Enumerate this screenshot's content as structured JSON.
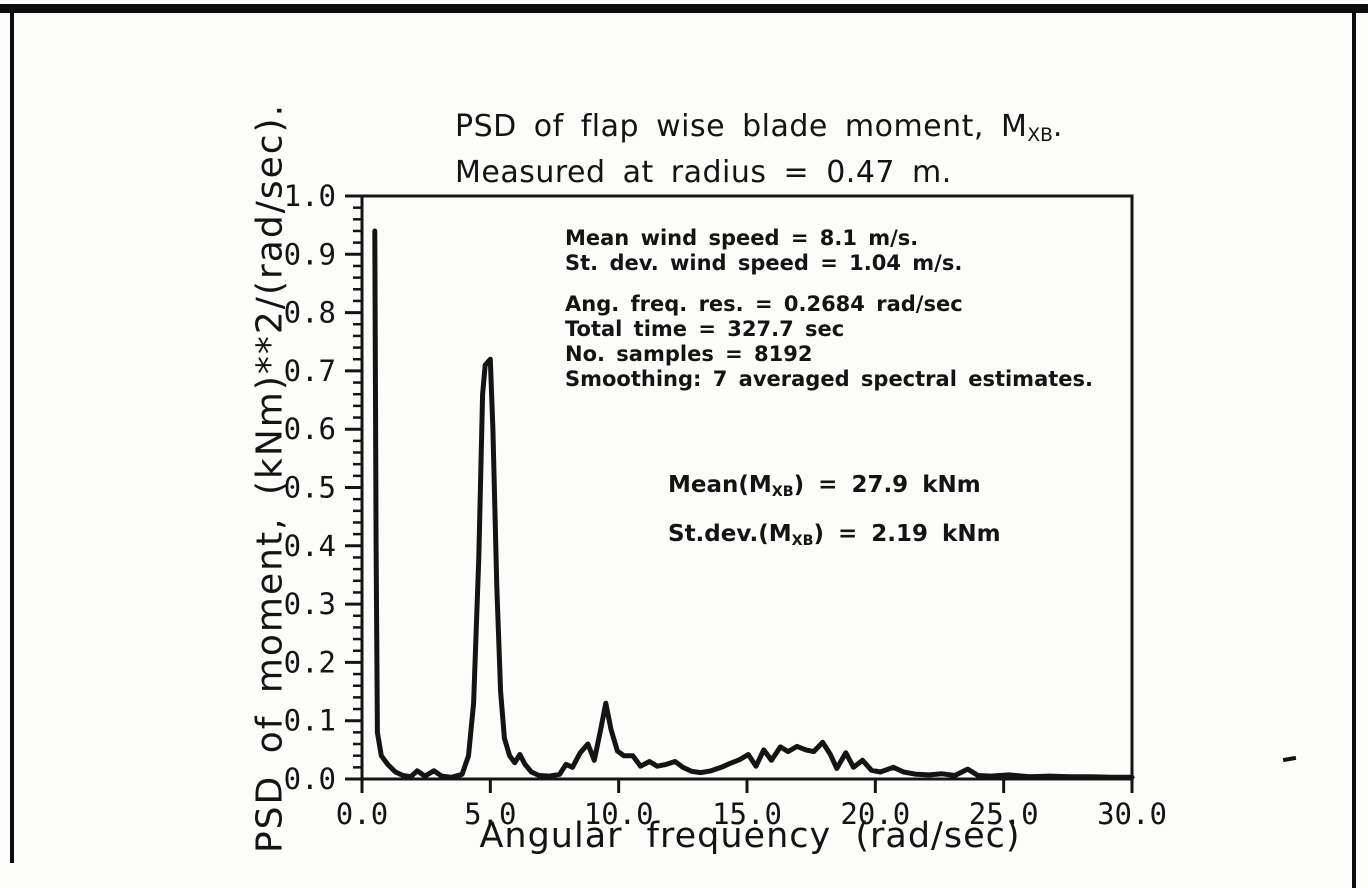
{
  "figure": {
    "title_line1": {
      "pre": "PSD of flap wise blade moment, M",
      "sub": "XB",
      "post": "."
    },
    "title_line2": "Measured at radius = 0.47 m.",
    "xlabel": "Angular frequency (rad/sec)",
    "ylabel": "PSD of moment, (kNm)**2/(rad/sec)."
  },
  "chart_data": {
    "type": "line",
    "title": "PSD of flap wise blade moment, MXB. Measured at radius = 0.47 m.",
    "xlabel": "Angular frequency (rad/sec)",
    "ylabel": "PSD of moment, (kNm)**2/(rad/sec).",
    "xlim": [
      0,
      30
    ],
    "ylim": [
      0,
      1
    ],
    "grid": false,
    "legend": null,
    "line_color": "#141414",
    "x_ticks": [
      {
        "v": 0,
        "label": "0.0"
      },
      {
        "v": 5,
        "label": "5.0"
      },
      {
        "v": 10,
        "label": "10.0"
      },
      {
        "v": 15,
        "label": "15.0"
      },
      {
        "v": 20,
        "label": "20.0"
      },
      {
        "v": 25,
        "label": "25.0"
      },
      {
        "v": 30,
        "label": "30.0"
      }
    ],
    "y_ticks": [
      {
        "v": 0.0,
        "label": "0.0"
      },
      {
        "v": 0.1,
        "label": "0.1"
      },
      {
        "v": 0.2,
        "label": "0.2"
      },
      {
        "v": 0.3,
        "label": "0.3"
      },
      {
        "v": 0.4,
        "label": "0.4"
      },
      {
        "v": 0.5,
        "label": "0.5"
      },
      {
        "v": 0.6,
        "label": "0.6"
      },
      {
        "v": 0.7,
        "label": "0.7"
      },
      {
        "v": 0.8,
        "label": "0.8"
      },
      {
        "v": 0.9,
        "label": "0.9"
      },
      {
        "v": 1.0,
        "label": "1.0"
      }
    ],
    "y_minor_step": 0.02,
    "series": [
      {
        "name": "PSD of flap wise blade moment",
        "points": [
          [
            0.5,
            0.94
          ],
          [
            0.55,
            0.4
          ],
          [
            0.6,
            0.08
          ],
          [
            0.75,
            0.04
          ],
          [
            1.0,
            0.025
          ],
          [
            1.3,
            0.012
          ],
          [
            1.6,
            0.006
          ],
          [
            1.9,
            0.004
          ],
          [
            2.15,
            0.014
          ],
          [
            2.45,
            0.005
          ],
          [
            2.8,
            0.014
          ],
          [
            3.1,
            0.005
          ],
          [
            3.5,
            0.003
          ],
          [
            3.9,
            0.008
          ],
          [
            4.15,
            0.04
          ],
          [
            4.35,
            0.13
          ],
          [
            4.55,
            0.38
          ],
          [
            4.7,
            0.66
          ],
          [
            4.8,
            0.71
          ],
          [
            5.0,
            0.72
          ],
          [
            5.1,
            0.6
          ],
          [
            5.25,
            0.33
          ],
          [
            5.4,
            0.15
          ],
          [
            5.55,
            0.07
          ],
          [
            5.75,
            0.04
          ],
          [
            5.95,
            0.028
          ],
          [
            6.15,
            0.042
          ],
          [
            6.35,
            0.025
          ],
          [
            6.6,
            0.012
          ],
          [
            6.9,
            0.006
          ],
          [
            7.3,
            0.005
          ],
          [
            7.7,
            0.008
          ],
          [
            7.95,
            0.025
          ],
          [
            8.2,
            0.02
          ],
          [
            8.5,
            0.045
          ],
          [
            8.8,
            0.06
          ],
          [
            9.05,
            0.032
          ],
          [
            9.3,
            0.085
          ],
          [
            9.5,
            0.13
          ],
          [
            9.7,
            0.085
          ],
          [
            9.95,
            0.048
          ],
          [
            10.2,
            0.04
          ],
          [
            10.55,
            0.04
          ],
          [
            10.85,
            0.022
          ],
          [
            11.2,
            0.03
          ],
          [
            11.5,
            0.022
          ],
          [
            11.85,
            0.025
          ],
          [
            12.2,
            0.03
          ],
          [
            12.5,
            0.02
          ],
          [
            12.85,
            0.013
          ],
          [
            13.2,
            0.011
          ],
          [
            13.6,
            0.014
          ],
          [
            14.0,
            0.02
          ],
          [
            14.35,
            0.027
          ],
          [
            14.7,
            0.033
          ],
          [
            15.05,
            0.042
          ],
          [
            15.35,
            0.022
          ],
          [
            15.65,
            0.05
          ],
          [
            15.95,
            0.032
          ],
          [
            16.3,
            0.055
          ],
          [
            16.6,
            0.047
          ],
          [
            16.95,
            0.056
          ],
          [
            17.3,
            0.05
          ],
          [
            17.6,
            0.047
          ],
          [
            17.95,
            0.063
          ],
          [
            18.25,
            0.042
          ],
          [
            18.5,
            0.018
          ],
          [
            18.85,
            0.045
          ],
          [
            19.15,
            0.02
          ],
          [
            19.5,
            0.032
          ],
          [
            19.85,
            0.015
          ],
          [
            20.2,
            0.012
          ],
          [
            20.7,
            0.02
          ],
          [
            21.1,
            0.012
          ],
          [
            21.6,
            0.008
          ],
          [
            22.1,
            0.007
          ],
          [
            22.6,
            0.009
          ],
          [
            23.1,
            0.006
          ],
          [
            23.6,
            0.017
          ],
          [
            24.0,
            0.006
          ],
          [
            24.5,
            0.005
          ],
          [
            25.2,
            0.007
          ],
          [
            26.0,
            0.004
          ],
          [
            26.8,
            0.005
          ],
          [
            27.6,
            0.004
          ],
          [
            28.4,
            0.004
          ],
          [
            29.2,
            0.003
          ],
          [
            30.0,
            0.003
          ]
        ]
      }
    ],
    "annotations": {
      "info_lines": [
        "Mean wind speed = 8.1 m/s.",
        "St. dev. wind speed = 1.04 m/s.",
        "Ang. freq. res. = 0.2684 rad/sec",
        "Total time = 327.7 sec",
        "No. samples = 8192",
        "Smoothing: 7 averaged spectral estimates."
      ],
      "mean": {
        "pre": "Mean(M",
        "sub": "XB",
        "post": ") = 27.9 kNm"
      },
      "stdev": {
        "pre": "St.dev.(M",
        "sub": "XB",
        "post": ") = 2.19 kNm"
      }
    },
    "stats": {
      "mean_wind_speed_m_per_s": 8.1,
      "stdev_wind_speed_m_per_s": 1.04,
      "ang_freq_res_rad_per_sec": 0.2684,
      "total_time_sec": 327.7,
      "num_samples": 8192,
      "smoothing": "7 averaged spectral estimates",
      "mean_MXB_kNm": 27.9,
      "stdev_MXB_kNm": 2.19,
      "measured_radius_m": 0.47
    }
  }
}
